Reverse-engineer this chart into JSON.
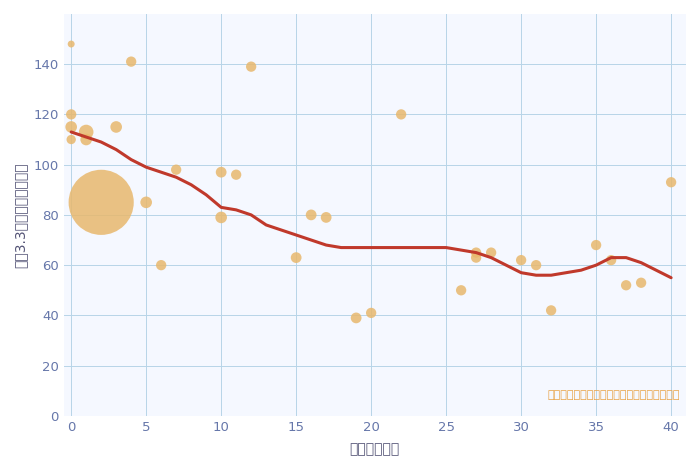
{
  "xlabel": "築年数（年）",
  "ylabel": "坪（3.3㎡）単価（万円）",
  "scatter_x": [
    0,
    0,
    0,
    0,
    1,
    1,
    2,
    3,
    4,
    5,
    6,
    7,
    10,
    10,
    11,
    12,
    15,
    16,
    17,
    19,
    20,
    22,
    26,
    27,
    27,
    28,
    30,
    31,
    32,
    35,
    36,
    37,
    38,
    40
  ],
  "scatter_y": [
    148,
    120,
    115,
    110,
    113,
    110,
    85,
    115,
    141,
    85,
    60,
    98,
    79,
    97,
    96,
    139,
    63,
    80,
    79,
    39,
    41,
    120,
    50,
    65,
    63,
    65,
    62,
    60,
    42,
    68,
    62,
    52,
    53,
    93
  ],
  "scatter_size": [
    25,
    55,
    70,
    45,
    110,
    70,
    2200,
    70,
    55,
    70,
    55,
    55,
    70,
    60,
    55,
    55,
    60,
    60,
    60,
    60,
    55,
    55,
    55,
    55,
    55,
    55,
    55,
    55,
    55,
    55,
    55,
    55,
    55,
    55
  ],
  "scatter_color": "#E8B86D",
  "scatter_alpha": 0.85,
  "line_x": [
    0,
    1,
    2,
    3,
    4,
    5,
    6,
    7,
    8,
    9,
    10,
    11,
    12,
    13,
    14,
    15,
    16,
    17,
    18,
    19,
    20,
    21,
    22,
    23,
    24,
    25,
    26,
    27,
    28,
    29,
    30,
    31,
    32,
    33,
    34,
    35,
    36,
    37,
    38,
    39,
    40
  ],
  "line_y": [
    113,
    111,
    109,
    106,
    102,
    99,
    97,
    95,
    92,
    88,
    83,
    82,
    80,
    76,
    74,
    72,
    70,
    68,
    67,
    67,
    67,
    67,
    67,
    67,
    67,
    67,
    66,
    65,
    63,
    60,
    57,
    56,
    56,
    57,
    58,
    60,
    63,
    63,
    61,
    58,
    55
  ],
  "line_color": "#C0392B",
  "line_width": 2.2,
  "xlim": [
    -0.5,
    41
  ],
  "ylim": [
    0,
    160
  ],
  "xticks": [
    0,
    5,
    10,
    15,
    20,
    25,
    30,
    35,
    40
  ],
  "yticks": [
    0,
    20,
    40,
    60,
    80,
    100,
    120,
    140
  ],
  "grid_color": "#B8D4E8",
  "bg_color": "#F5F8FF",
  "annotation": "円の大きさは、取引のあった物件面積を示す",
  "annotation_color": "#E8A040",
  "title_color": "#444444",
  "axis_label_color": "#555577",
  "tick_color": "#6677AA"
}
